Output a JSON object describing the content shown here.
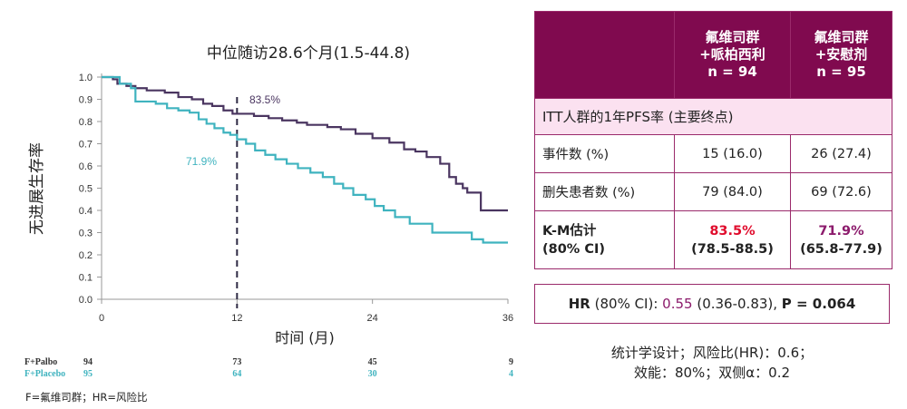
{
  "chart_data": {
    "type": "line",
    "title": "中位随访28.6个月(1.5-44.8)",
    "xlabel": "时间 (月)",
    "ylabel": "无进展生存率",
    "xlim": [
      0,
      36
    ],
    "ylim": [
      0,
      1.0
    ],
    "x_ticks": [
      "0",
      "12",
      "24",
      "36"
    ],
    "y_ticks": [
      "0.0",
      "0.1",
      "0.2",
      "0.3",
      "0.4",
      "0.5",
      "0.6",
      "0.7",
      "0.8",
      "0.9",
      "1.0"
    ],
    "reference_line": {
      "x": 12,
      "style": "dashed"
    },
    "annotations": [
      {
        "text": "83.5%",
        "series": "F+Palbo"
      },
      {
        "text": "71.9%",
        "series": "F+Placebo"
      }
    ],
    "series": [
      {
        "name": "F+Palbo",
        "color": "#4a3560",
        "x": [
          0,
          1.0,
          1.4,
          2.2,
          3.0,
          4.0,
          5.6,
          6.8,
          8.0,
          9.0,
          9.8,
          10.8,
          11.6,
          12.4,
          13.5,
          14.8,
          16.0,
          17.3,
          18.2,
          20.0,
          21.2,
          22.5,
          24.0,
          25.5,
          26.8,
          27.8,
          28.8,
          30.0,
          30.8,
          31.4,
          32.0,
          32.4,
          33.6,
          36.0
        ],
        "y": [
          1.0,
          0.99,
          0.97,
          0.96,
          0.95,
          0.94,
          0.93,
          0.91,
          0.9,
          0.88,
          0.87,
          0.85,
          0.835,
          0.835,
          0.825,
          0.815,
          0.805,
          0.795,
          0.785,
          0.775,
          0.765,
          0.745,
          0.725,
          0.705,
          0.675,
          0.665,
          0.64,
          0.61,
          0.55,
          0.52,
          0.5,
          0.48,
          0.4,
          0.4
        ]
      },
      {
        "name": "F+Placebo",
        "color": "#3fb3bf",
        "x": [
          0,
          1.6,
          2.6,
          3.0,
          4.8,
          5.8,
          6.8,
          7.8,
          8.6,
          9.3,
          10.0,
          10.8,
          11.4,
          12.0,
          12.8,
          13.6,
          14.5,
          15.4,
          16.4,
          17.4,
          18.5,
          19.6,
          20.6,
          21.4,
          22.3,
          23.4,
          24.2,
          25.0,
          26.0,
          27.3,
          29.3,
          32.8,
          33.8,
          36.0
        ],
        "y": [
          1.0,
          0.97,
          0.95,
          0.89,
          0.88,
          0.86,
          0.85,
          0.84,
          0.81,
          0.79,
          0.77,
          0.75,
          0.74,
          0.72,
          0.7,
          0.67,
          0.65,
          0.63,
          0.61,
          0.59,
          0.57,
          0.55,
          0.52,
          0.5,
          0.47,
          0.45,
          0.42,
          0.4,
          0.37,
          0.34,
          0.3,
          0.27,
          0.255,
          0.255
        ]
      }
    ],
    "risk_table": {
      "times": [
        0,
        12,
        24,
        36
      ],
      "rows": [
        {
          "label": "F+Palbo",
          "counts": [
            "94",
            "73",
            "45",
            "9"
          ],
          "color": "#333333"
        },
        {
          "label": "F+Placebo",
          "counts": [
            "95",
            "64",
            "30",
            "4"
          ],
          "color": "#3fb3bf"
        }
      ]
    }
  },
  "table": {
    "header": {
      "col1_line1": "氟维司群",
      "col1_line2": "+哌柏西利",
      "col1_line3": "n = 94",
      "col2_line1": "氟维司群",
      "col2_line2": "+安慰剂",
      "col2_line3": "n = 95"
    },
    "section": "ITT人群的1年PFS率 (主要终点)",
    "rows": [
      {
        "label": "事件数 (%)",
        "treat": "15 (16.0)",
        "placebo": "26 (27.4)"
      },
      {
        "label": "删失患者数 (%)",
        "treat": "79 (84.0)",
        "placebo": "69 (72.6)"
      }
    ],
    "km": {
      "label_line1": "K-M估计",
      "label_line2": "(80% CI)",
      "treat_value": "83.5%",
      "treat_ci": "(78.5-88.5)",
      "placebo_value": "71.9%",
      "placebo_ci": "(65.8-77.9)"
    }
  },
  "hr": {
    "label": "HR",
    "ci_label": " (80% CI): ",
    "value": "0.55",
    "ci": " (0.36-0.83), ",
    "p": "P = 0.064"
  },
  "design_note": {
    "line1": "统计学设计；风险比(HR)：0.6；",
    "line2": "效能：80%；双侧α：0.2"
  },
  "footnote": "F=氟维司群；HR=风险比",
  "colors": {
    "accent": "#800a4f",
    "section_bg": "#fbe1f0",
    "palbo": "#4a3560",
    "placebo": "#3fb3bf",
    "highlight_red": "#e00b2c"
  }
}
